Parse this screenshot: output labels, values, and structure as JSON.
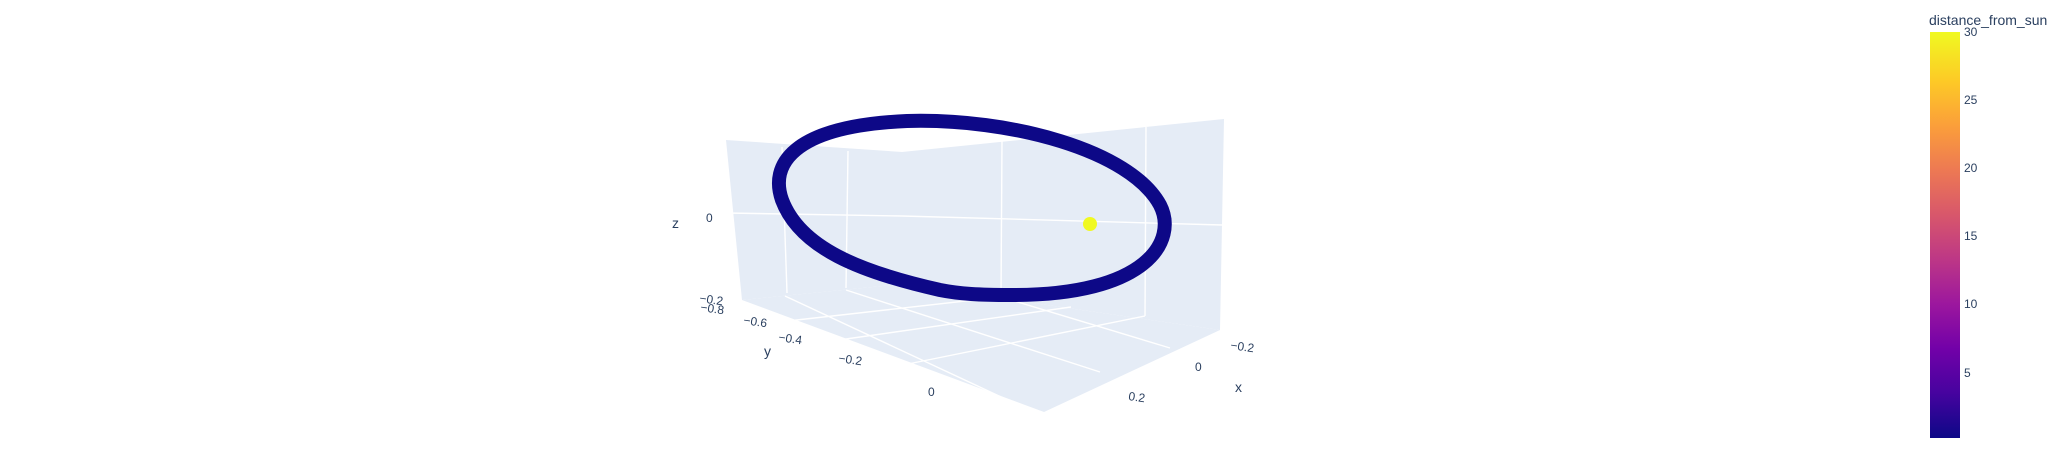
{
  "chart_data": {
    "type": "scatter3d",
    "axes": {
      "x": {
        "title": "x",
        "ticks": [
          "−0.2",
          "0",
          "0.2"
        ]
      },
      "y": {
        "title": "y",
        "ticks": [
          "−0.8",
          "−0.6",
          "−0.4",
          "−0.2",
          "0"
        ]
      },
      "z": {
        "title": "z",
        "ticks": [
          "−0.2",
          "0"
        ]
      }
    },
    "series": [
      {
        "kind": "orbit",
        "distance_from_sun": 0.4,
        "color": "#0d0887"
      },
      {
        "kind": "sun",
        "distance_from_sun": 30,
        "color": "#f0f921"
      }
    ],
    "colorbar": {
      "title": "distance_from_sun",
      "ticks": [
        "30",
        "25",
        "20",
        "15",
        "10",
        "5"
      ],
      "range": [
        0,
        30
      ],
      "colorscale": [
        "#0d0887",
        "#46039f",
        "#7201a8",
        "#9c179e",
        "#bd3786",
        "#d8576b",
        "#ed7953",
        "#fb9f3a",
        "#fdca26",
        "#f0f921"
      ]
    }
  }
}
